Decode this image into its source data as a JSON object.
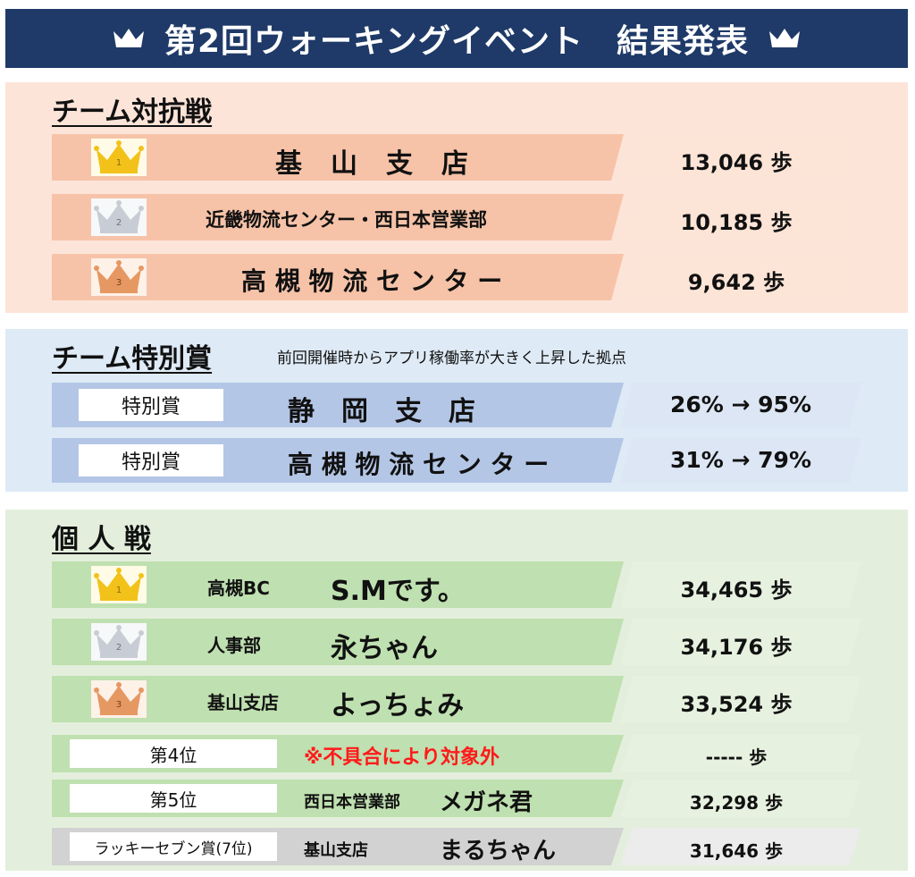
{
  "header": {
    "title": "第2回ウォーキングイベント　結果発表"
  },
  "team": {
    "title": "チーム対抗戦",
    "rows": [
      {
        "rank_icon": "gold-crown-1",
        "name": "基　山　支　店",
        "steps": "13,046 歩"
      },
      {
        "rank_icon": "silver-crown-2",
        "name": "近畿物流センター・西日本営業部",
        "steps": "10,185 歩"
      },
      {
        "rank_icon": "bronze-crown-3",
        "name": "高 槻 物 流 セ ン タ ー",
        "steps": "9,642 歩"
      }
    ]
  },
  "special": {
    "title": "チーム特別賞",
    "note": "前回開催時からアプリ稼働率が大きく上昇した拠点",
    "rows": [
      {
        "award": "特別賞",
        "name": "静　岡　支　店",
        "rate": "26% → 95%"
      },
      {
        "award": "特別賞",
        "name": "高 槻 物 流 セ ン タ ー",
        "rate": "31% → 79%"
      }
    ]
  },
  "individual": {
    "title": "個 人 戦",
    "rows": [
      {
        "rank_icon": "gold-crown-1",
        "dept": "高槻BC",
        "name": "S.Mです。",
        "steps": "34,465 歩"
      },
      {
        "rank_icon": "silver-crown-2",
        "dept": "人事部",
        "name": "永ちゃん",
        "steps": "34,176 歩"
      },
      {
        "rank_icon": "bronze-crown-3",
        "dept": "基山支店",
        "name": "よっちょみ",
        "steps": "33,524 歩"
      },
      {
        "rank": "第4位",
        "note": "※不具合により対象外",
        "steps": "----- 歩"
      },
      {
        "rank": "第5位",
        "dept": "西日本営業部",
        "name": "メガネ君",
        "steps": "32,298 歩"
      },
      {
        "rank": "ラッキーセブン賞(7位)",
        "dept": "基山支店",
        "name": "まるちゃん",
        "steps": "31,646 歩"
      }
    ]
  },
  "colors": {
    "header_bg": "#1f3a68",
    "team_bg": "#fde4d8",
    "special_bg": "#deeaf6",
    "individual_bg": "#e3efdc",
    "gold": "#f2c21a",
    "silver": "#c8ccd4",
    "bronze": "#e69862",
    "warning_text": "#ff1a1a"
  }
}
